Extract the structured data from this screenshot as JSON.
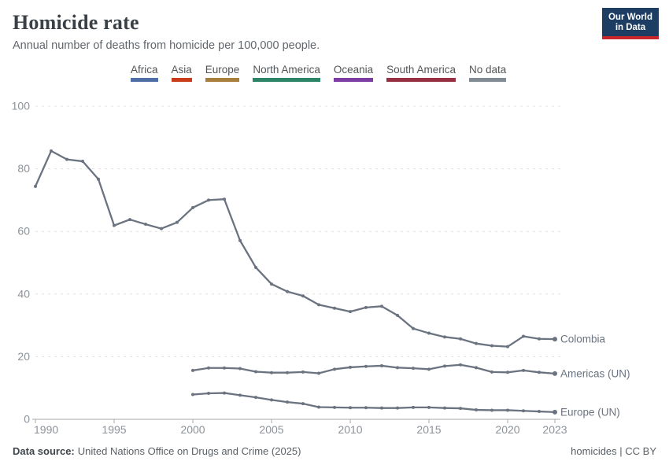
{
  "header": {
    "title": "Homicide rate",
    "subtitle": "Annual number of deaths from homicide per 100,000 people."
  },
  "logo": {
    "line1": "Our World",
    "line2": "in Data",
    "bg": "#1d3d63",
    "accent": "#c9262c"
  },
  "legend": {
    "items": [
      {
        "label": "Africa",
        "color": "#4f6ea6"
      },
      {
        "label": "Asia",
        "color": "#c93c1a"
      },
      {
        "label": "Europe",
        "color": "#a87e3d"
      },
      {
        "label": "North America",
        "color": "#2b8466"
      },
      {
        "label": "Oceania",
        "color": "#7d3ca4"
      },
      {
        "label": "South America",
        "color": "#983043"
      },
      {
        "label": "No data",
        "color": "#828a93"
      }
    ]
  },
  "chart_data": {
    "type": "line",
    "title": "Homicide rate",
    "xlabel": "",
    "ylabel": "",
    "xlim": [
      1990,
      2023
    ],
    "ylim": [
      0,
      100
    ],
    "yticks": [
      0,
      20,
      40,
      60,
      80,
      100
    ],
    "xticks": [
      1990,
      1995,
      2000,
      2005,
      2010,
      2015,
      2020,
      2023
    ],
    "grid": "horizontal-dashed",
    "legend_position": "end-of-line-labels",
    "line_color": "#6b7380",
    "axis_color": "#a8a8a8",
    "gridline_color": "#e0e0e0",
    "tick_label_color": "#8c9299",
    "series": [
      {
        "name": "Colombia",
        "x": [
          1990,
          1991,
          1992,
          1993,
          1994,
          1995,
          1996,
          1997,
          1998,
          1999,
          2000,
          2001,
          2002,
          2003,
          2004,
          2005,
          2006,
          2007,
          2008,
          2009,
          2010,
          2011,
          2012,
          2013,
          2014,
          2015,
          2016,
          2017,
          2018,
          2019,
          2020,
          2021,
          2022,
          2023
        ],
        "values": [
          74.4,
          85.7,
          83.0,
          82.4,
          76.7,
          61.9,
          63.8,
          62.3,
          60.9,
          62.9,
          67.6,
          70.0,
          70.3,
          57.1,
          48.5,
          43.2,
          40.8,
          39.4,
          36.6,
          35.5,
          34.4,
          35.7,
          36.1,
          33.2,
          29.0,
          27.5,
          26.3,
          25.7,
          24.2,
          23.5,
          23.2,
          26.5,
          25.7,
          25.6
        ]
      },
      {
        "name": "Americas (UN)",
        "x": [
          2000,
          2001,
          2002,
          2003,
          2004,
          2005,
          2006,
          2007,
          2008,
          2009,
          2010,
          2011,
          2012,
          2013,
          2014,
          2015,
          2016,
          2017,
          2018,
          2019,
          2020,
          2021,
          2022,
          2023
        ],
        "values": [
          15.6,
          16.4,
          16.4,
          16.2,
          15.2,
          14.9,
          14.9,
          15.1,
          14.7,
          16.0,
          16.6,
          16.9,
          17.1,
          16.5,
          16.3,
          16.0,
          17.0,
          17.4,
          16.5,
          15.1,
          15.0,
          15.6,
          15.0,
          14.6
        ]
      },
      {
        "name": "Europe (UN)",
        "x": [
          2000,
          2001,
          2002,
          2003,
          2004,
          2005,
          2006,
          2007,
          2008,
          2009,
          2010,
          2011,
          2012,
          2013,
          2014,
          2015,
          2016,
          2017,
          2018,
          2019,
          2020,
          2021,
          2022,
          2023
        ],
        "values": [
          7.9,
          8.3,
          8.4,
          7.7,
          7.0,
          6.2,
          5.5,
          5.0,
          3.9,
          3.8,
          3.7,
          3.7,
          3.6,
          3.6,
          3.8,
          3.8,
          3.6,
          3.5,
          3.0,
          2.9,
          2.9,
          2.7,
          2.5,
          2.3
        ]
      }
    ]
  },
  "footer": {
    "source_label": "Data source:",
    "source": "United Nations Office on Drugs and Crime (2025)",
    "license": "homicides | CC BY"
  }
}
